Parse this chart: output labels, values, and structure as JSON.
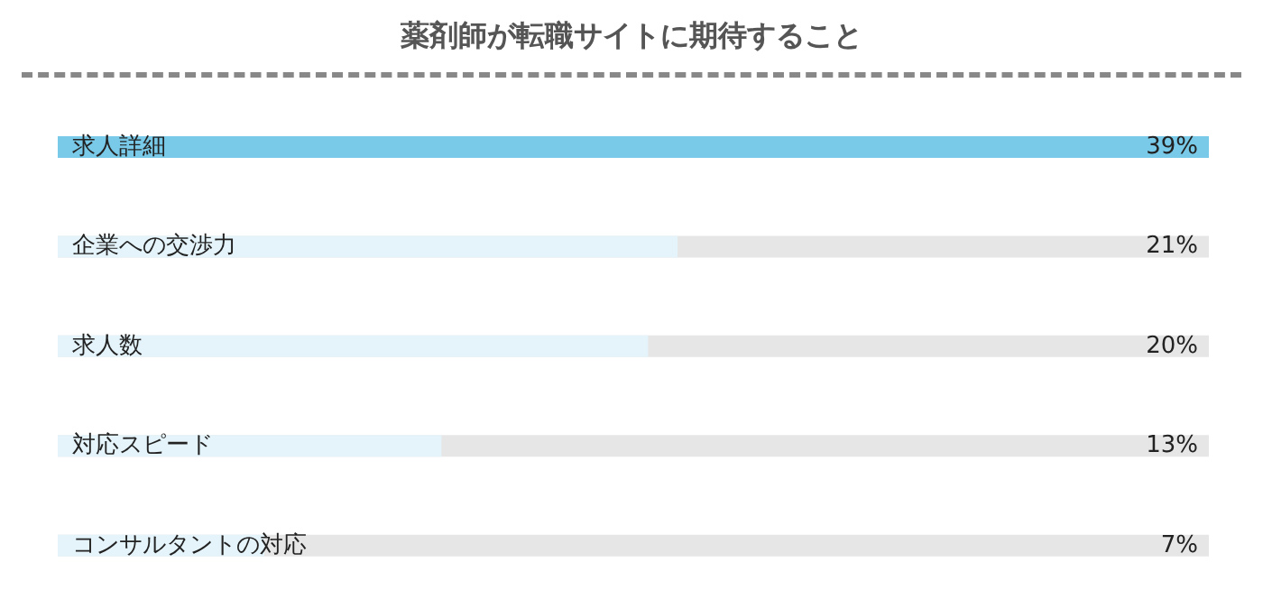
{
  "chart_data": {
    "type": "bar",
    "orientation": "horizontal",
    "title": "薬剤師が転職サイトに期待すること",
    "categories": [
      "求人詳細",
      "企業への交渉力",
      "求人数",
      "対応スピード",
      "コンサルタントの対応"
    ],
    "values": [
      39,
      21,
      20,
      13,
      7
    ],
    "colors": [
      "#79cae8",
      "#e5f4fa",
      "#e5f4fa",
      "#e5f4fa",
      "#e5f4fa"
    ],
    "value_labels": [
      "39%",
      "21%",
      "20%",
      "13%",
      "7%"
    ]
  }
}
